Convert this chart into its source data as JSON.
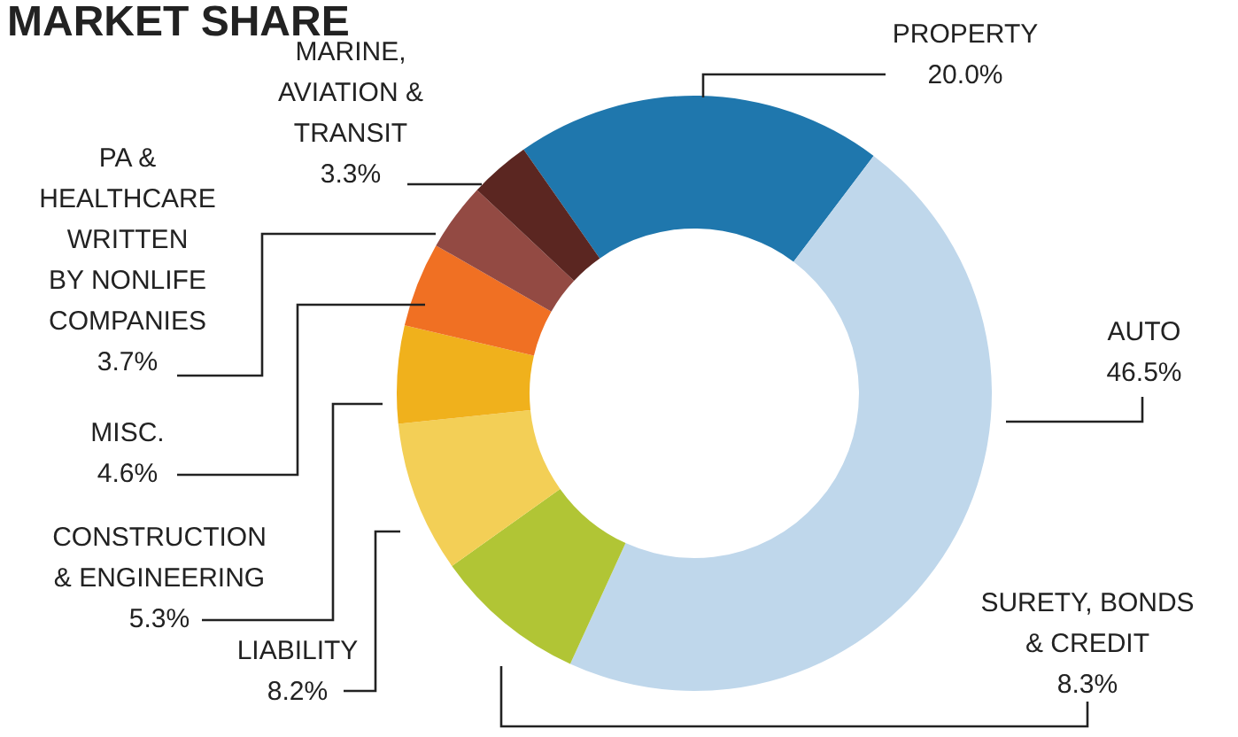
{
  "chart_data": {
    "type": "donut",
    "title": "MARKET SHARE",
    "categories": [
      "PROPERTY",
      "AUTO",
      "SURETY, BONDS & CREDIT",
      "LIABILITY",
      "CONSTRUCTION & ENGINEERING",
      "MISC.",
      "PA & HEALTHCARE WRITTEN BY NONLIFE COMPANIES",
      "MARINE, AVIATION & TRANSIT"
    ],
    "values": [
      20.0,
      46.5,
      8.3,
      8.2,
      5.3,
      4.6,
      3.7,
      3.3
    ],
    "value_labels": [
      "20.0%",
      "46.5%",
      "8.3%",
      "8.2%",
      "5.3%",
      "4.6%",
      "3.7%",
      "3.3%"
    ],
    "colors": [
      "#1f77ad",
      "#bfd7eb",
      "#b1c535",
      "#f3cf56",
      "#f0b11c",
      "#f07023",
      "#934a43",
      "#5b2621"
    ]
  }
}
